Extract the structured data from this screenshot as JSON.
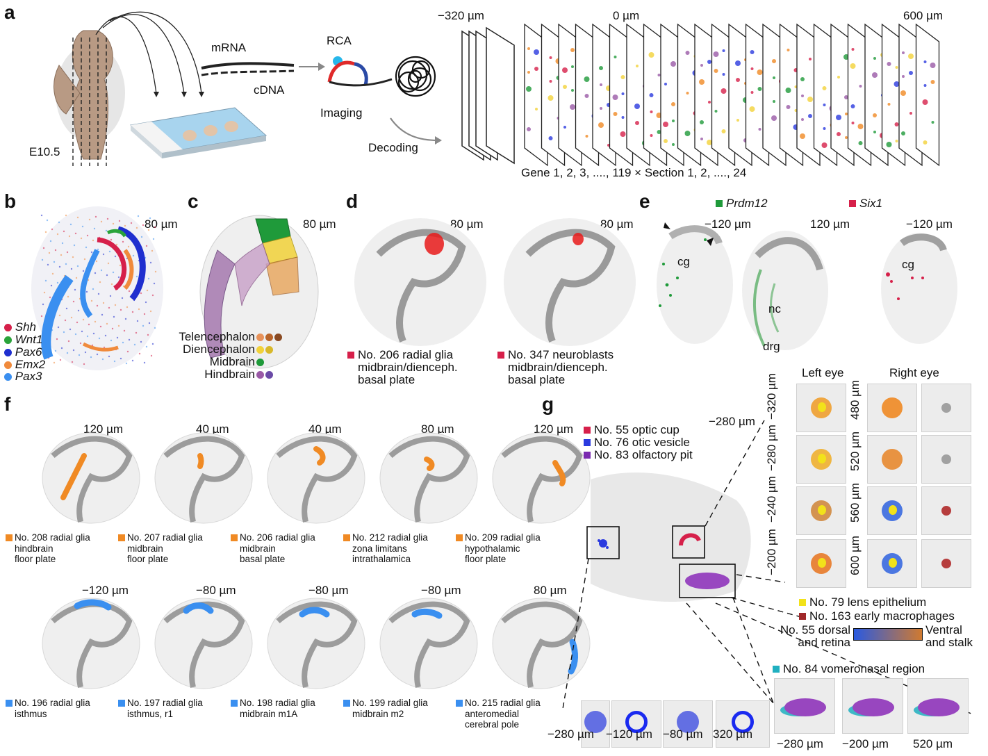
{
  "panel_labels": {
    "a": "a",
    "b": "b",
    "c": "c",
    "d": "d",
    "e": "e",
    "f": "f",
    "g": "g"
  },
  "panel_a": {
    "embryo_stage": "E10.5",
    "mrna": "mRNA",
    "cdna": "cDNA",
    "rca": "RCA",
    "imaging": "Imaging",
    "decoding": "Decoding",
    "pos_left": "−320 µm",
    "pos_mid": "0 µm",
    "pos_right": "600 µm",
    "footer": "Gene 1, 2, 3, ...., 119 × Section 1, 2, ...., 24"
  },
  "panel_b": {
    "depth": "80 µm",
    "legend": [
      {
        "gene": "Shh",
        "color": "#d6204a"
      },
      {
        "gene": "Wnt1",
        "color": "#2aa33a"
      },
      {
        "gene": "Pax6",
        "color": "#1f2fcf"
      },
      {
        "gene": "Emx2",
        "color": "#f08a3c"
      },
      {
        "gene": "Pax3",
        "color": "#3a8ff0"
      }
    ]
  },
  "panel_c": {
    "depth": "80 µm",
    "legend": [
      {
        "name": "Telencephalon",
        "colors": [
          "#e8925a",
          "#b8642a",
          "#8a4a22"
        ]
      },
      {
        "name": "Diencephalon",
        "colors": [
          "#f2d23a",
          "#d8b82a"
        ]
      },
      {
        "name": "Midbrain",
        "colors": [
          "#1f9a3a"
        ]
      },
      {
        "name": "Hindbrain",
        "colors": [
          "#9a5aa6",
          "#6a4aa6"
        ]
      }
    ]
  },
  "panel_d": {
    "items": [
      {
        "depth": "80 µm",
        "line1": "No. 206 radial glia",
        "line2": "midbrain/dienceph.",
        "line3": "basal plate"
      },
      {
        "depth": "80 µm",
        "line1": "No. 347 neuroblasts",
        "line2": "midbrain/dienceph.",
        "line3": "basal plate"
      }
    ],
    "marker_color": "#d6204a"
  },
  "panel_e": {
    "legend": [
      {
        "gene": "Prdm12",
        "color": "#1f9a3a"
      },
      {
        "gene": "Six1",
        "color": "#d6204a"
      }
    ],
    "sections": [
      {
        "depth": "−120 µm",
        "labels": [
          "cg"
        ]
      },
      {
        "depth": "120 µm",
        "labels": [
          "nc",
          "drg"
        ]
      },
      {
        "depth": "−120 µm",
        "labels": [
          "cg"
        ]
      }
    ]
  },
  "panel_f": {
    "row1": [
      {
        "depth": "120 µm",
        "l1": "No. 208 radial glia",
        "l2": "hindbrain",
        "l3": "floor plate"
      },
      {
        "depth": "40 µm",
        "l1": "No. 207 radial glia",
        "l2": "midbrain",
        "l3": "floor plate"
      },
      {
        "depth": "40 µm",
        "l1": "No. 206 radial glia",
        "l2": "midbrain",
        "l3": "basal plate"
      },
      {
        "depth": "80 µm",
        "l1": "No. 212 radial glia",
        "l2": "zona limitans",
        "l3": "intrathalamica"
      },
      {
        "depth": "120 µm",
        "l1": "No. 209 radial glia",
        "l2": "hypothalamic",
        "l3": "floor plate"
      }
    ],
    "row2": [
      {
        "depth": "−120 µm",
        "l1": "No. 196 radial glia",
        "l2": "isthmus",
        "l3": ""
      },
      {
        "depth": "−80 µm",
        "l1": "No. 197 radial glia",
        "l2": "isthmus, r1",
        "l3": ""
      },
      {
        "depth": "−80 µm",
        "l1": "No. 198 radial glia",
        "l2": "midbrain m1A",
        "l3": ""
      },
      {
        "depth": "−80 µm",
        "l1": "No. 199 radial glia",
        "l2": "midbrain m2",
        "l3": ""
      },
      {
        "depth": "80 µm",
        "l1": "No. 215 radial glia",
        "l2": "anteromedial",
        "l3": "cerebral pole"
      }
    ],
    "row1_color": "#f08a24",
    "row2_color": "#3a8ff0"
  },
  "panel_g": {
    "depth": "−280 µm",
    "legend": [
      {
        "name": "No. 55 optic cup",
        "color": "#d6204a"
      },
      {
        "name": "No. 76 otic vesicle",
        "color": "#2a3adf"
      },
      {
        "name": "No. 83 olfactory pit",
        "color": "#7a2ab0"
      }
    ],
    "left_eye": "Left eye",
    "right_eye": "Right eye",
    "left_depths": [
      "−320 µm",
      "−280 µm",
      "−240 µm",
      "−200 µm"
    ],
    "right_depths": [
      "480 µm",
      "520 µm",
      "560 µm",
      "600 µm"
    ],
    "lens": {
      "name": "No. 79 lens epithelium",
      "color": "#f2e21a"
    },
    "macro": {
      "name": "No. 163 early macrophages",
      "color": "#a0282a"
    },
    "scale_left": [
      "No. 55 dorsal",
      "and retina"
    ],
    "scale_right": [
      "Ventral",
      "and stalk"
    ],
    "vomeronasal": {
      "name": "No. 84 vomeronasal region",
      "color": "#20b0c0"
    },
    "bottom_depths": [
      "−280 µm",
      "−120 µm",
      "−80 µm",
      "320 µm",
      "−280 µm",
      "−200 µm",
      "520 µm"
    ]
  }
}
